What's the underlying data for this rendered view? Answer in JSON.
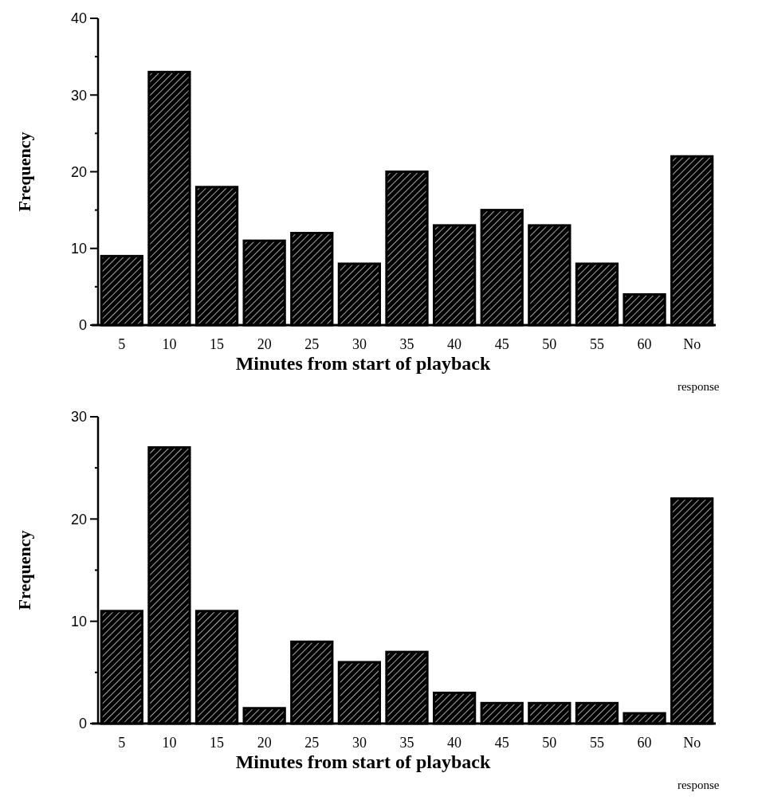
{
  "chart_data": [
    {
      "type": "bar",
      "xlabel": "Minutes from start of playback",
      "ylabel": "Frequency",
      "categories": [
        "5",
        "10",
        "15",
        "20",
        "25",
        "30",
        "35",
        "40",
        "45",
        "50",
        "55",
        "60",
        "No response"
      ],
      "series": [
        {
          "color": "#000000",
          "values": [
            9,
            33,
            18,
            11,
            12,
            8,
            20,
            13,
            15,
            13,
            8,
            4,
            22
          ]
        }
      ],
      "ylim": [
        0,
        40
      ],
      "yticks": [
        0,
        {
          "value": 5,
          "label": null
        },
        10,
        {
          "value": 15,
          "label": null
        },
        20,
        {
          "value": 25,
          "label": null
        },
        30,
        {
          "value": 35,
          "label": null
        },
        40
      ],
      "grid": false
    },
    {
      "type": "bar",
      "xlabel": "Minutes from start of playback",
      "ylabel": "Frequency",
      "categories": [
        "5",
        "10",
        "15",
        "20",
        "25",
        "30",
        "35",
        "40",
        "45",
        "50",
        "55",
        "60",
        "No response"
      ],
      "series": [
        {
          "color": "#000000",
          "values": [
            11,
            27,
            11,
            1.5,
            8,
            6,
            7,
            3,
            2,
            2,
            2,
            1,
            22
          ]
        }
      ],
      "ylim": [
        0,
        30
      ],
      "yticks": [
        0,
        {
          "value": 5,
          "label": null
        },
        10,
        {
          "value": 15,
          "label": null
        },
        20,
        {
          "value": 25,
          "label": null
        },
        30
      ],
      "grid": false
    }
  ]
}
